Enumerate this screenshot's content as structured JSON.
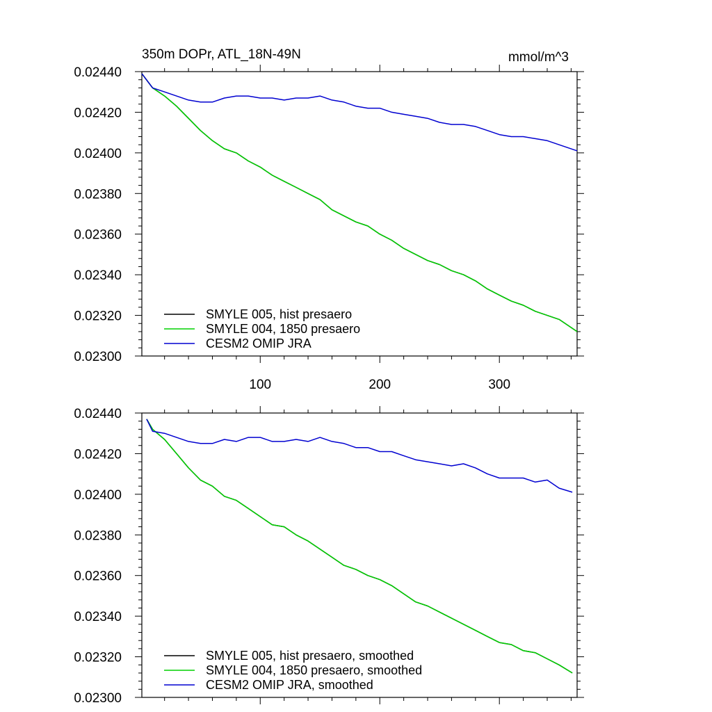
{
  "chart_data": [
    {
      "type": "line",
      "title_left": "350m DOPr, ATL_18N-49N",
      "title_right": "mmol/m^3",
      "xlabel": "",
      "ylabel": "",
      "xlim": [
        1,
        365
      ],
      "ylim": [
        0.023,
        0.0244
      ],
      "xticks": [
        100,
        200,
        300
      ],
      "xtick_labels": [
        "100",
        "200",
        "300"
      ],
      "yticks": [
        0.0244,
        0.0242,
        0.024,
        0.0238,
        0.0236,
        0.0234,
        0.0232,
        0.023
      ],
      "ytick_labels": [
        "0.02440",
        "0.02420",
        "0.02400",
        "0.02380",
        "0.02360",
        "0.02340",
        "0.02320",
        "0.02300"
      ],
      "grid": false,
      "legend_position": "bottom-left",
      "series": [
        {
          "name": "SMYLE 005, hist presaero",
          "color": "#000000",
          "x": [
            1,
            10,
            20,
            30,
            40,
            50,
            60,
            70,
            80,
            90,
            100,
            110,
            120,
            130,
            140,
            150,
            160,
            170,
            180,
            190,
            200,
            210,
            220,
            230,
            240,
            250,
            260,
            270,
            280,
            290,
            300,
            310,
            320,
            330,
            340,
            350,
            365
          ],
          "values": [
            0.02439,
            0.02432,
            0.02428,
            0.02423,
            0.02417,
            0.02411,
            0.02406,
            0.02402,
            0.024,
            0.02396,
            0.02393,
            0.02389,
            0.02386,
            0.02383,
            0.0238,
            0.02377,
            0.02372,
            0.02369,
            0.02366,
            0.02364,
            0.0236,
            0.02357,
            0.02353,
            0.0235,
            0.02347,
            0.02345,
            0.02342,
            0.0234,
            0.02337,
            0.02333,
            0.0233,
            0.02327,
            0.02325,
            0.02322,
            0.0232,
            0.02318,
            0.02312
          ]
        },
        {
          "name": "SMYLE 004, 1850 presaero",
          "color": "#00d000",
          "x": [
            1,
            10,
            20,
            30,
            40,
            50,
            60,
            70,
            80,
            90,
            100,
            110,
            120,
            130,
            140,
            150,
            160,
            170,
            180,
            190,
            200,
            210,
            220,
            230,
            240,
            250,
            260,
            270,
            280,
            290,
            300,
            310,
            320,
            330,
            340,
            350,
            365
          ],
          "values": [
            0.02439,
            0.02432,
            0.02428,
            0.02423,
            0.02417,
            0.02411,
            0.02406,
            0.02402,
            0.024,
            0.02396,
            0.02393,
            0.02389,
            0.02386,
            0.02383,
            0.0238,
            0.02377,
            0.02372,
            0.02369,
            0.02366,
            0.02364,
            0.0236,
            0.02357,
            0.02353,
            0.0235,
            0.02347,
            0.02345,
            0.02342,
            0.0234,
            0.02337,
            0.02333,
            0.0233,
            0.02327,
            0.02325,
            0.02322,
            0.0232,
            0.02318,
            0.02312
          ]
        },
        {
          "name": "CESM2 OMIP JRA",
          "color": "#0000d0",
          "x": [
            1,
            10,
            20,
            30,
            40,
            50,
            60,
            70,
            80,
            90,
            100,
            110,
            120,
            130,
            140,
            150,
            160,
            170,
            180,
            190,
            200,
            210,
            220,
            230,
            240,
            250,
            260,
            270,
            280,
            290,
            300,
            310,
            320,
            330,
            340,
            350,
            365
          ],
          "values": [
            0.02439,
            0.02432,
            0.0243,
            0.02428,
            0.02426,
            0.02425,
            0.02425,
            0.02427,
            0.02428,
            0.02428,
            0.02427,
            0.02427,
            0.02426,
            0.02427,
            0.02427,
            0.02428,
            0.02426,
            0.02425,
            0.02423,
            0.02422,
            0.02422,
            0.0242,
            0.02419,
            0.02418,
            0.02417,
            0.02415,
            0.02414,
            0.02414,
            0.02413,
            0.02411,
            0.02409,
            0.02408,
            0.02408,
            0.02407,
            0.02406,
            0.02404,
            0.02401
          ]
        }
      ]
    },
    {
      "type": "line",
      "xlabel": "",
      "ylabel": "",
      "xlim": [
        1,
        365
      ],
      "ylim": [
        0.023,
        0.0244
      ],
      "xticks": [
        100,
        200,
        300
      ],
      "xtick_labels": [],
      "yticks": [
        0.0244,
        0.0242,
        0.024,
        0.0238,
        0.0236,
        0.0234,
        0.0232,
        0.023
      ],
      "ytick_labels": [
        "0.02440",
        "0.02420",
        "0.02400",
        "0.02380",
        "0.02360",
        "0.02340",
        "0.02320",
        "0.02300"
      ],
      "grid": false,
      "legend_position": "bottom-left",
      "series": [
        {
          "name": "SMYLE 005, hist presaero, smoothed",
          "color": "#000000",
          "x": [
            5,
            10,
            20,
            30,
            40,
            50,
            60,
            70,
            80,
            90,
            100,
            110,
            120,
            130,
            140,
            150,
            160,
            170,
            180,
            190,
            200,
            210,
            220,
            230,
            240,
            250,
            260,
            270,
            280,
            290,
            300,
            310,
            320,
            330,
            340,
            350,
            361
          ],
          "values": [
            0.02437,
            0.02432,
            0.02427,
            0.0242,
            0.02413,
            0.02407,
            0.02404,
            0.02399,
            0.02397,
            0.02393,
            0.02389,
            0.02385,
            0.02384,
            0.0238,
            0.02377,
            0.02373,
            0.02369,
            0.02365,
            0.02363,
            0.0236,
            0.02358,
            0.02355,
            0.02351,
            0.02347,
            0.02345,
            0.02342,
            0.02339,
            0.02336,
            0.02333,
            0.0233,
            0.02327,
            0.02326,
            0.02323,
            0.02322,
            0.02319,
            0.02316,
            0.02312
          ]
        },
        {
          "name": "SMYLE 004, 1850 presaero, smoothed",
          "color": "#00d000",
          "x": [
            5,
            10,
            20,
            30,
            40,
            50,
            60,
            70,
            80,
            90,
            100,
            110,
            120,
            130,
            140,
            150,
            160,
            170,
            180,
            190,
            200,
            210,
            220,
            230,
            240,
            250,
            260,
            270,
            280,
            290,
            300,
            310,
            320,
            330,
            340,
            350,
            361
          ],
          "values": [
            0.02437,
            0.02432,
            0.02427,
            0.0242,
            0.02413,
            0.02407,
            0.02404,
            0.02399,
            0.02397,
            0.02393,
            0.02389,
            0.02385,
            0.02384,
            0.0238,
            0.02377,
            0.02373,
            0.02369,
            0.02365,
            0.02363,
            0.0236,
            0.02358,
            0.02355,
            0.02351,
            0.02347,
            0.02345,
            0.02342,
            0.02339,
            0.02336,
            0.02333,
            0.0233,
            0.02327,
            0.02326,
            0.02323,
            0.02322,
            0.02319,
            0.02316,
            0.02312
          ]
        },
        {
          "name": "CESM2 OMIP JRA, smoothed",
          "color": "#0000d0",
          "x": [
            5,
            10,
            20,
            30,
            40,
            50,
            60,
            70,
            80,
            90,
            100,
            110,
            120,
            130,
            140,
            150,
            160,
            170,
            180,
            190,
            200,
            210,
            220,
            230,
            240,
            250,
            260,
            270,
            280,
            290,
            300,
            310,
            320,
            330,
            340,
            350,
            361
          ],
          "values": [
            0.02437,
            0.02431,
            0.0243,
            0.02428,
            0.02426,
            0.02425,
            0.02425,
            0.02427,
            0.02426,
            0.02428,
            0.02428,
            0.02426,
            0.02426,
            0.02427,
            0.02426,
            0.02428,
            0.02426,
            0.02425,
            0.02423,
            0.02423,
            0.02421,
            0.02421,
            0.02419,
            0.02417,
            0.02416,
            0.02415,
            0.02414,
            0.02415,
            0.02413,
            0.0241,
            0.02408,
            0.02408,
            0.02408,
            0.02406,
            0.02407,
            0.02403,
            0.02401
          ]
        }
      ]
    }
  ]
}
